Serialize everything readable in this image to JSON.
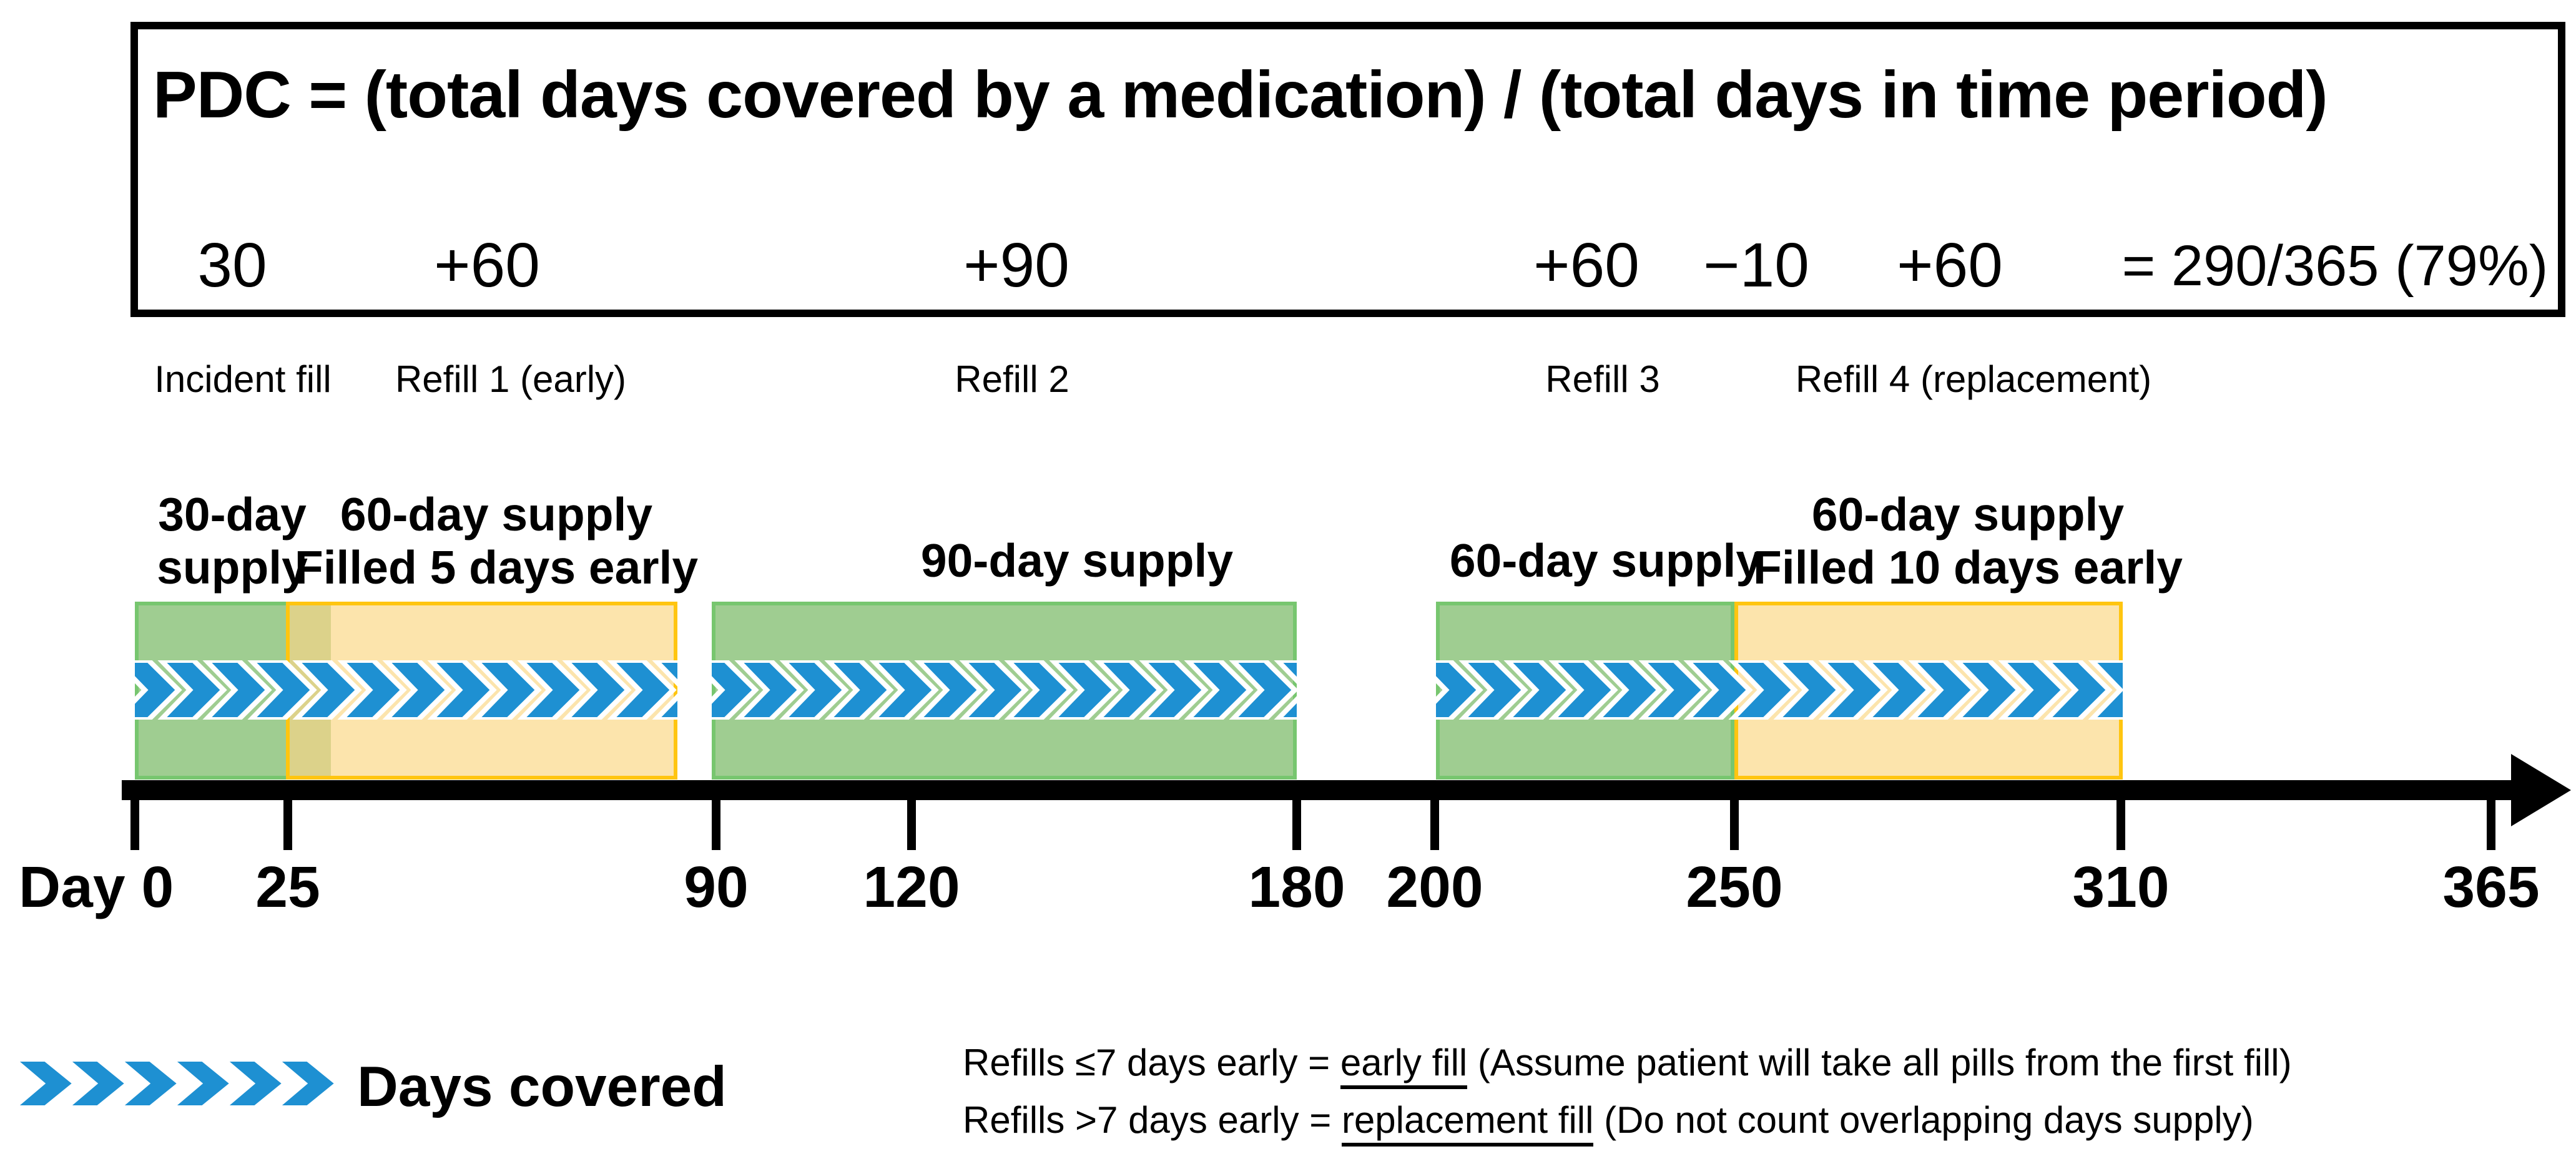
{
  "title": "PDC medication adherence timeline diagram",
  "formula_box": {
    "formula": "PDC = (total days covered by a medication) / (total days in time period)",
    "terms": [
      "30",
      "+60",
      "+90",
      "+60",
      "−10",
      "+60",
      "= 290/365 (79%)"
    ]
  },
  "fill_labels": [
    "Incident fill",
    "Refill 1 (early)",
    "Refill 2",
    "Refill 3",
    "Refill 4 (replacement)"
  ],
  "bar_labels": [
    {
      "line1": "30-day",
      "line2": "supply"
    },
    {
      "line1": "60-day supply",
      "line2": "Filled 5 days early"
    },
    {
      "line1": "90-day supply"
    },
    {
      "line1": "60-day supply"
    },
    {
      "line1": "60-day supply",
      "line2": "Filled 10 days early"
    }
  ],
  "axis": {
    "ticks": [
      "Day 0",
      "25",
      "90",
      "120",
      "180",
      "200",
      "250",
      "310",
      "365"
    ]
  },
  "timeline": {
    "unit": "days",
    "range": [
      0,
      365
    ],
    "tick_days": [
      0,
      25,
      90,
      120,
      180,
      200,
      250,
      310,
      365
    ],
    "days_covered_total": 290,
    "total_days": 365,
    "pdc_percent": 79,
    "fills": [
      {
        "label": "Incident fill",
        "term": "30",
        "days_supply": 30
      },
      {
        "label": "Refill 1 (early)",
        "term": "+60",
        "days_supply": 60,
        "filled_days_early": 5
      },
      {
        "label": "Refill 2",
        "term": "+90",
        "days_supply": 90
      },
      {
        "label": "Refill 3",
        "term": "+60",
        "days_supply": 60
      },
      {
        "label": "Refill 4 (replacement)",
        "term": "+60",
        "days_supply": 60,
        "filled_days_early": 10,
        "overlap_adjustment": "−10"
      }
    ]
  },
  "legend": {
    "days_covered": "Days covered",
    "notes": [
      {
        "pre": "Refills ≤7 days early = ",
        "underline": "early fill",
        "post": " (Assume patient will take all pills from the first fill)"
      },
      {
        "pre": "Refills >7 days early = ",
        "underline": "replacement fill",
        "post": " (Do not count overlapping days supply)"
      }
    ]
  },
  "colors": {
    "supply_green_fill": "#9FCD91",
    "supply_green_border": "#77C66F",
    "early_fill_yellow": "#FCE4AC",
    "early_fill_border": "#FFC510",
    "overlap_olive": "#DCD28A",
    "chevron_blue": "#1E90D2",
    "axis_black": "#000000"
  }
}
